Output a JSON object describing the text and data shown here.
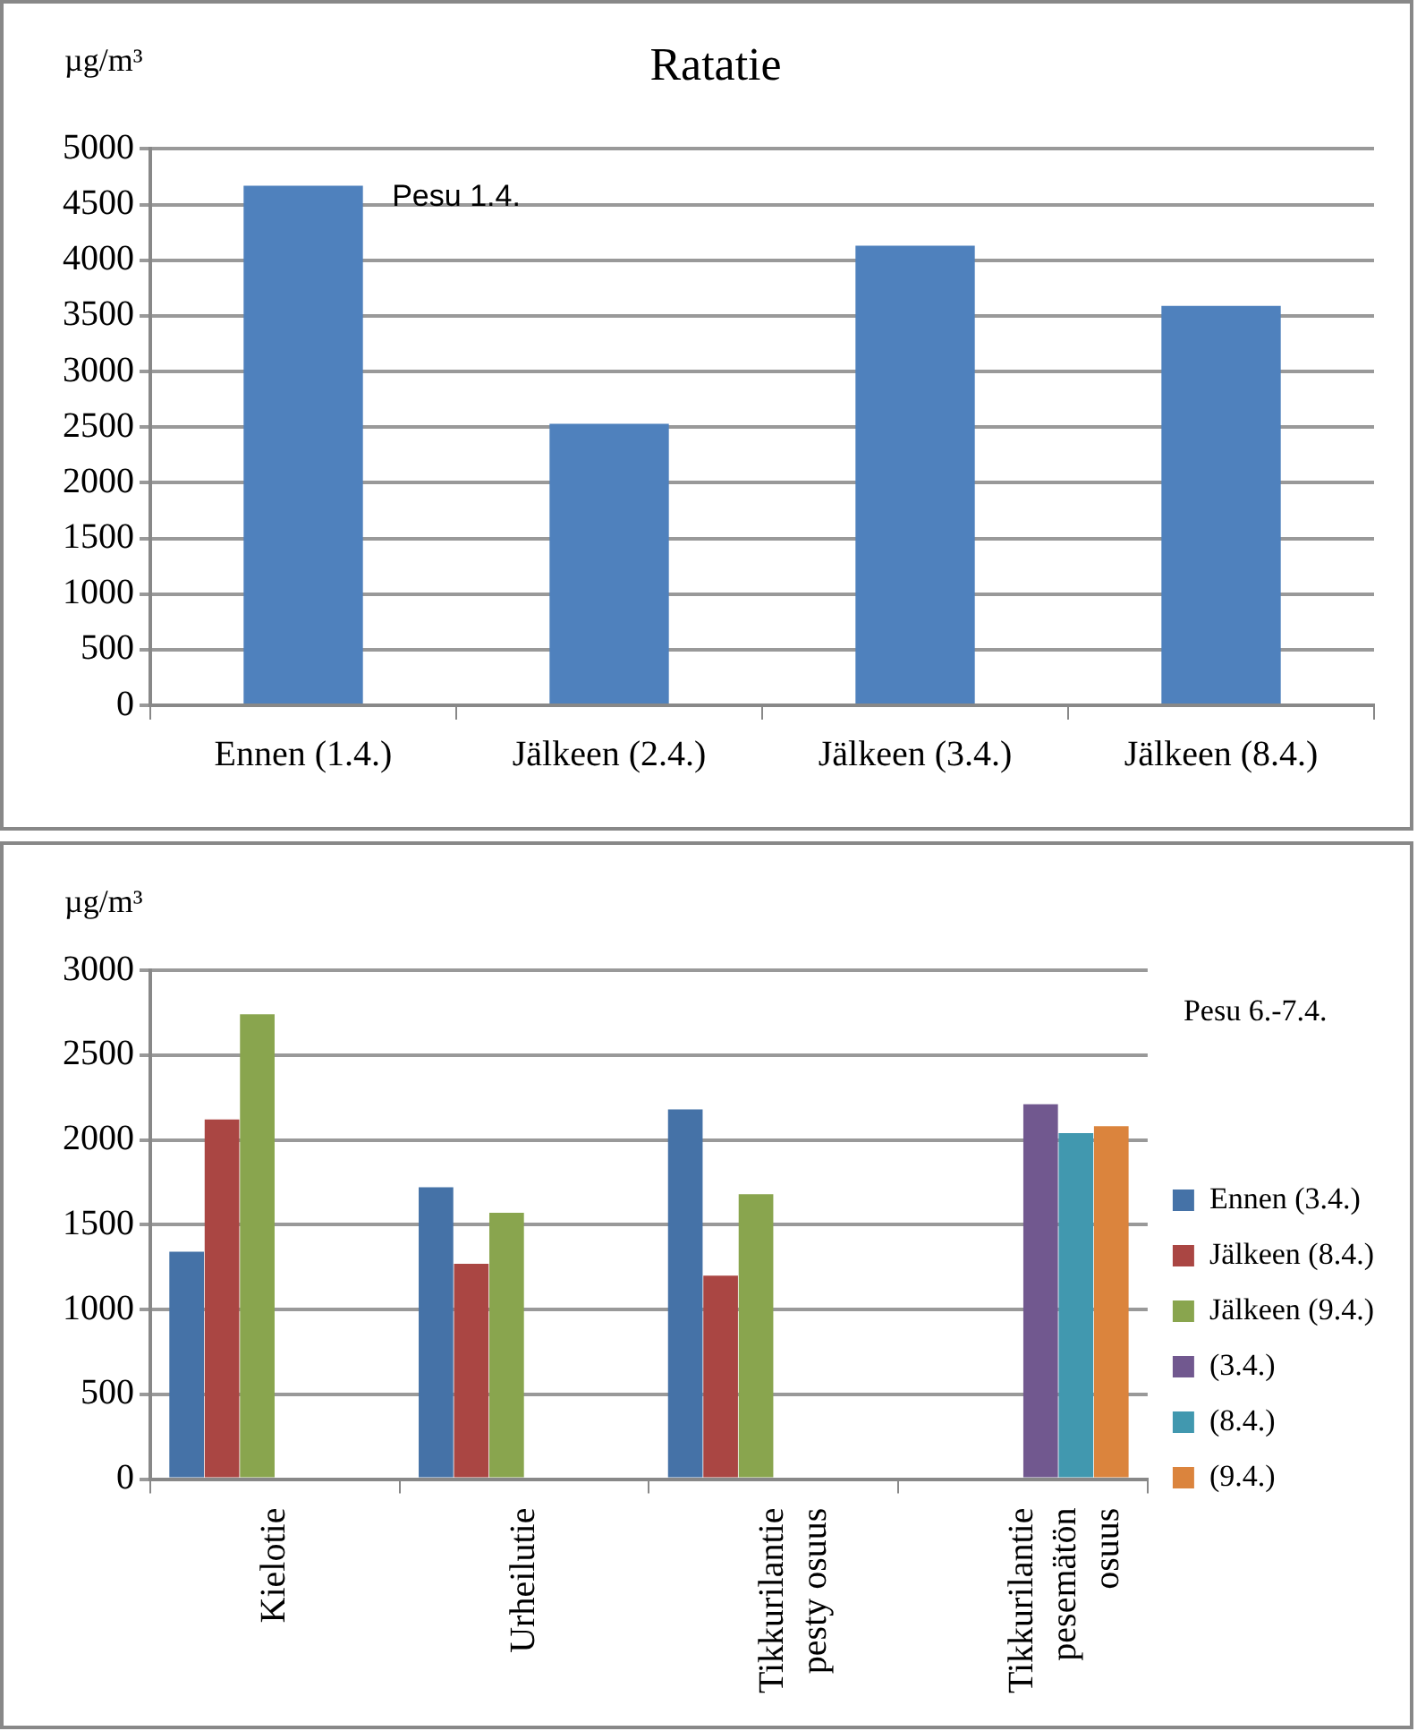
{
  "chart_data": [
    {
      "type": "bar",
      "title": "Ratatie",
      "ylabel": "µg/m³",
      "categories": [
        "Ennen (1.4.)",
        "Jälkeen (2.4.)",
        "Jälkeen (3.4.)",
        "Jälkeen (8.4.)"
      ],
      "values": [
        4670,
        2530,
        4130,
        3590
      ],
      "color": "#4f81bd",
      "ylim": [
        0,
        5000
      ],
      "yticks": [
        0,
        500,
        1000,
        1500,
        2000,
        2500,
        3000,
        3500,
        4000,
        4500,
        5000
      ],
      "grid": "y",
      "annotations": [
        "Pesu 1.4."
      ]
    },
    {
      "type": "bar",
      "ylabel": "µg/m³",
      "categories": [
        "Kielotie",
        "Urheilutie",
        "Tikkurilantie pesty osuus",
        "Tikkurilantie pesemätön osuus"
      ],
      "series": [
        {
          "name": "Ennen (3.4.)",
          "color": "#4572a7",
          "values": [
            1340,
            1720,
            2180,
            null
          ]
        },
        {
          "name": "Jälkeen (8.4.)",
          "color": "#aa4643",
          "values": [
            2120,
            1270,
            1200,
            null
          ]
        },
        {
          "name": "Jälkeen (9.4.)",
          "color": "#89a54e",
          "values": [
            2740,
            1570,
            1680,
            null
          ]
        },
        {
          "name": "(3.4.)",
          "color": "#71588f",
          "values": [
            null,
            null,
            null,
            2210
          ]
        },
        {
          "name": "(8.4.)",
          "color": "#4198af",
          "values": [
            null,
            null,
            null,
            2040
          ]
        },
        {
          "name": "(9.4.)",
          "color": "#db843d",
          "values": [
            null,
            null,
            null,
            2080
          ]
        }
      ],
      "ylim": [
        0,
        3000
      ],
      "yticks": [
        0,
        500,
        1000,
        1500,
        2000,
        2500,
        3000
      ],
      "grid": "y",
      "legend": "right",
      "annotations": [
        "Pesu 6.-7.4."
      ]
    }
  ]
}
